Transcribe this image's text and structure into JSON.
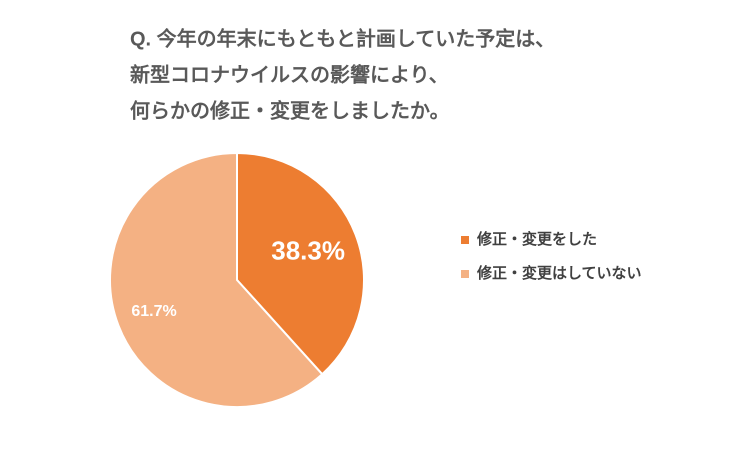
{
  "chart_data": {
    "type": "pie",
    "title": [
      "Q. 今年の年末にもともと計画していた予定は、",
      "新型コロナウイルスの影響により、",
      "何らかの修正・変更をしましたか。"
    ],
    "categories": [
      "修正・変更をした",
      "修正・変更はしていない"
    ],
    "values": [
      38.3,
      61.7
    ],
    "value_labels": [
      "38.3%",
      "61.7%"
    ],
    "colors": [
      "#ed7d31",
      "#f4b183"
    ],
    "legend": "right"
  }
}
